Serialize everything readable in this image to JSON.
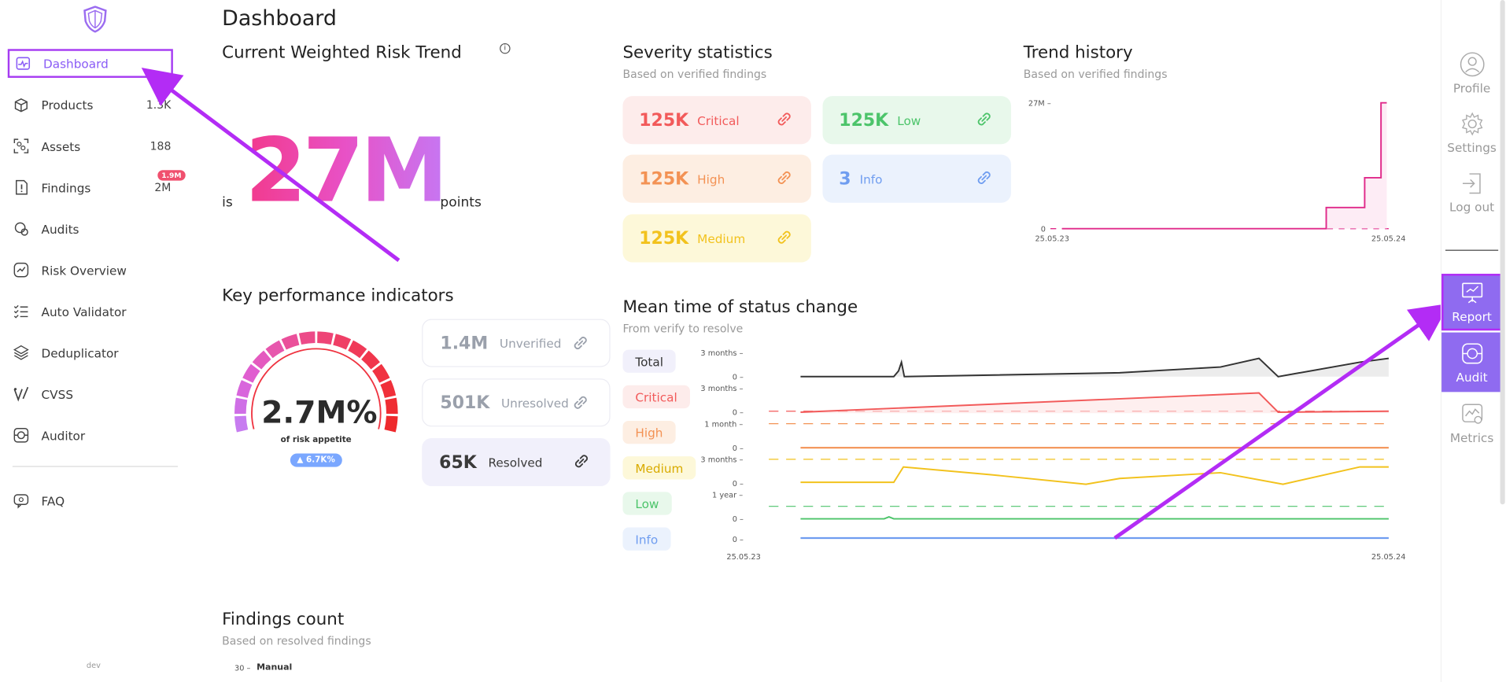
{
  "sidebar": {
    "items": [
      {
        "label": "Dashboard",
        "count": ""
      },
      {
        "label": "Products",
        "count": "1.3K"
      },
      {
        "label": "Assets",
        "count": "188"
      },
      {
        "label": "Findings",
        "count": "2M",
        "badge": "1.9M"
      },
      {
        "label": "Audits",
        "count": ""
      },
      {
        "label": "Risk Overview",
        "count": ""
      },
      {
        "label": "Auto Validator",
        "count": ""
      },
      {
        "label": "Deduplicator",
        "count": ""
      },
      {
        "label": "CVSS",
        "count": ""
      },
      {
        "label": "Auditor",
        "count": ""
      }
    ],
    "faq": "FAQ",
    "env": "dev"
  },
  "page": {
    "title": "Dashboard"
  },
  "risk_trend": {
    "title": "Current Weighted Risk Trend",
    "prefix": "is",
    "value": "27M",
    "suffix": "points",
    "info_icon": "i"
  },
  "severity": {
    "title": "Severity statistics",
    "subtitle": "Based on verified findings",
    "cards": [
      {
        "value": "125K",
        "label": "Critical",
        "color": "#f25a5a",
        "bg": "#fdeceb"
      },
      {
        "value": "125K",
        "label": "Low",
        "color": "#4cc46a",
        "bg": "#e8f8eb"
      },
      {
        "value": "125K",
        "label": "High",
        "color": "#f39254",
        "bg": "#fdeee2"
      },
      {
        "value": "3",
        "label": "Info",
        "color": "#6f9df0",
        "bg": "#ebf2fd"
      },
      {
        "value": "125K",
        "label": "Medium",
        "color": "#f2c21d",
        "bg": "#fdf8d9"
      }
    ]
  },
  "trend": {
    "title": "Trend history",
    "subtitle": "Based on verified findings",
    "y_max": "27M –",
    "y_min": "0",
    "x_start": "25.05.23",
    "x_end": "25.05.24"
  },
  "kpi": {
    "title": "Key performance indicators",
    "gauge_value": "2.7M%",
    "gauge_label": "of risk appetite",
    "gauge_delta": "▲ 6.7K%",
    "cards": [
      {
        "value": "1.4M",
        "label": "Unverified",
        "color": "#9aa0ab",
        "bg": "#ffffff"
      },
      {
        "value": "501K",
        "label": "Unresolved",
        "color": "#9aa0ab",
        "bg": "#ffffff"
      },
      {
        "value": "65K",
        "label": "Resolved",
        "color": "#3a3a3a",
        "bg": "#f1f0fb"
      }
    ]
  },
  "mean_time": {
    "title": "Mean time of status change",
    "subtitle": "From verify to resolve",
    "tags": [
      {
        "label": "Total",
        "color": "#333333",
        "bg": "#f1f0fb"
      },
      {
        "label": "Critical",
        "color": "#f25a5a",
        "bg": "#fdeceb"
      },
      {
        "label": "High",
        "color": "#f39254",
        "bg": "#fdeee2"
      },
      {
        "label": "Medium",
        "color": "#d9ab00",
        "bg": "#fdf8d9"
      },
      {
        "label": "Low",
        "color": "#4cc46a",
        "bg": "#e8f8eb"
      },
      {
        "label": "Info",
        "color": "#6f9df0",
        "bg": "#ebf2fd"
      }
    ],
    "y_labels": [
      "3 months –",
      "0 –",
      "3 months –",
      "0 –",
      "1 month –",
      "0 –",
      "3 months –",
      "0 –",
      "1 year –",
      "0 –",
      "0 –"
    ],
    "x_start": "25.05.23",
    "x_end": "25.05.24"
  },
  "findings_count": {
    "title": "Findings count",
    "subtitle": "Based on resolved findings",
    "y_tick": "30 –",
    "series": "Manual"
  },
  "rail": {
    "profile": "Profile",
    "settings": "Settings",
    "logout": "Log out",
    "report": "Report",
    "audit": "Audit",
    "metrics": "Metrics"
  }
}
